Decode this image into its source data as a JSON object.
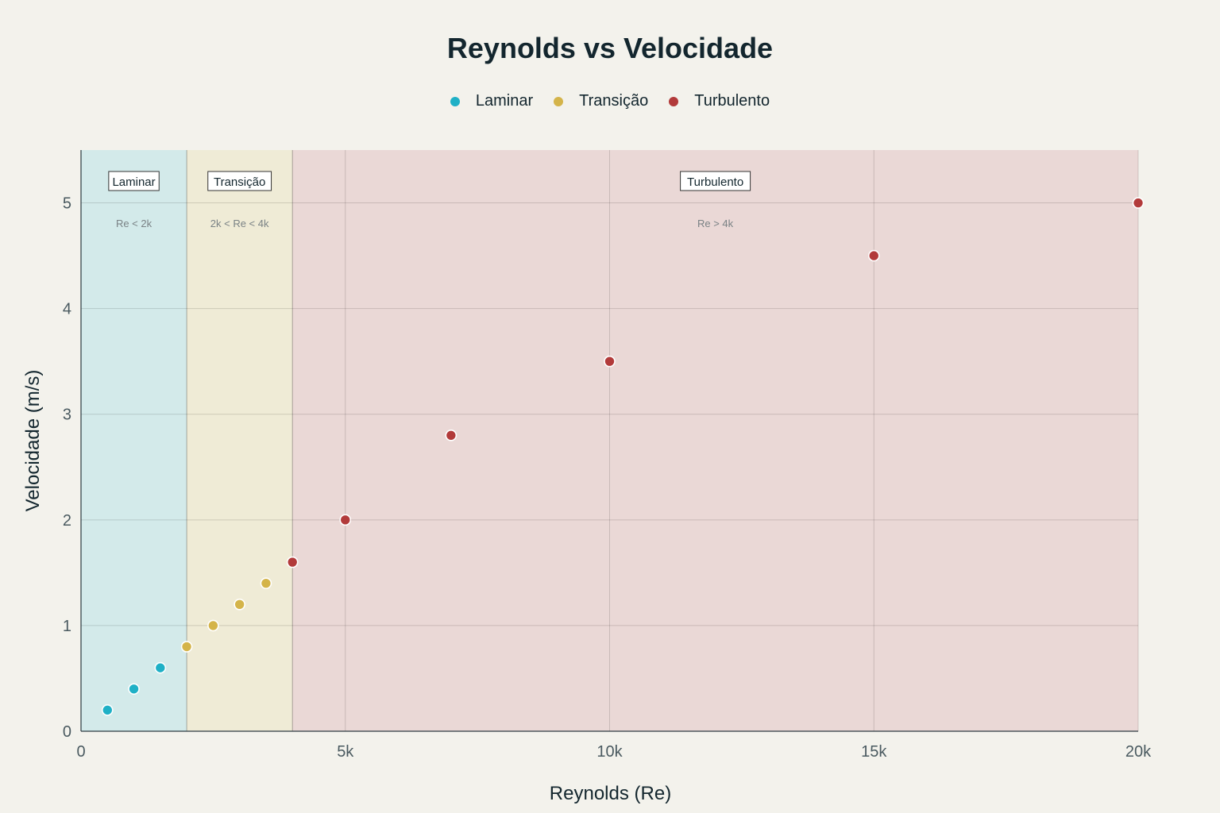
{
  "chart_data": {
    "type": "scatter",
    "title": "Reynolds vs Velocidade",
    "xlabel": "Reynolds (Re)",
    "ylabel": "Velocidade (m/s)",
    "xlim": [
      0,
      20000
    ],
    "ylim": [
      0,
      5.5
    ],
    "x_ticks": [
      0,
      5000,
      10000,
      15000,
      20000
    ],
    "x_tick_labels": [
      "0",
      "5k",
      "10k",
      "15k",
      "20k"
    ],
    "y_ticks": [
      0,
      1,
      2,
      3,
      4,
      5
    ],
    "y_tick_labels": [
      "0",
      "1",
      "2",
      "3",
      "4",
      "5"
    ],
    "grid": true,
    "legend_position": "top-center",
    "regions": [
      {
        "label": "Laminar",
        "sublabel": "Re < 2k",
        "x_start": 0,
        "x_end": 2000,
        "color": "#d3eaea"
      },
      {
        "label": "Transição",
        "sublabel": "2k < Re < 4k",
        "x_start": 2000,
        "x_end": 4000,
        "color": "#efebd6"
      },
      {
        "label": "Turbulento",
        "sublabel": "Re > 4k",
        "x_start": 4000,
        "x_end": 20000,
        "color": "#ead8d6"
      }
    ],
    "series": [
      {
        "name": "Laminar",
        "color": "#1fb0c6",
        "points": [
          [
            500,
            0.2
          ],
          [
            1000,
            0.4
          ],
          [
            1500,
            0.6
          ]
        ]
      },
      {
        "name": "Transição",
        "color": "#d4b44a",
        "points": [
          [
            2000,
            0.8
          ],
          [
            2500,
            1.0
          ],
          [
            3000,
            1.2
          ],
          [
            3500,
            1.4
          ]
        ]
      },
      {
        "name": "Turbulento",
        "color": "#b23a3a",
        "points": [
          [
            4000,
            1.6
          ],
          [
            5000,
            2.0
          ],
          [
            7000,
            2.8
          ],
          [
            10000,
            3.5
          ],
          [
            15000,
            4.5
          ],
          [
            20000,
            5.0
          ]
        ]
      }
    ]
  }
}
